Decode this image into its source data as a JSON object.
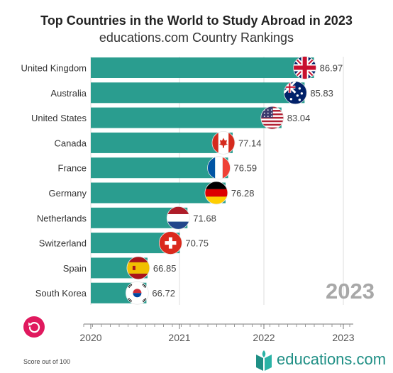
{
  "title": "Top Countries in the World to Study Abroad in 2023",
  "subtitle": "educations.com Country Rankings",
  "year_stamp": "2023",
  "footnote": "Score out of 100",
  "brand": "educations.com",
  "colors": {
    "bar": "#2a9d8f",
    "replay": "#e0195e",
    "brand": "#1f8f85"
  },
  "chart_data": {
    "type": "bar",
    "orientation": "horizontal",
    "categories": [
      "United Kingdom",
      "Australia",
      "United States",
      "Canada",
      "France",
      "Germany",
      "Netherlands",
      "Switzerland",
      "Spain",
      "South Korea"
    ],
    "values": [
      86.97,
      85.83,
      83.04,
      77.14,
      76.59,
      76.28,
      71.68,
      70.75,
      66.85,
      66.72
    ],
    "value_labels": [
      "86.97",
      "85.83",
      "83.04",
      "77.14",
      "76.59",
      "76.28",
      "71.68",
      "70.75",
      "66.85",
      "66.72"
    ],
    "flags": [
      "uk-flag-icon",
      "australia-flag-icon",
      "us-flag-icon",
      "canada-flag-icon",
      "france-flag-icon",
      "germany-flag-icon",
      "netherlands-flag-icon",
      "switzerland-flag-icon",
      "spain-flag-icon",
      "south-korea-flag-icon"
    ],
    "x_axis": {
      "ticks": [
        "2020",
        "2021",
        "2022",
        "2023"
      ]
    },
    "grid": true,
    "legend": "none"
  }
}
